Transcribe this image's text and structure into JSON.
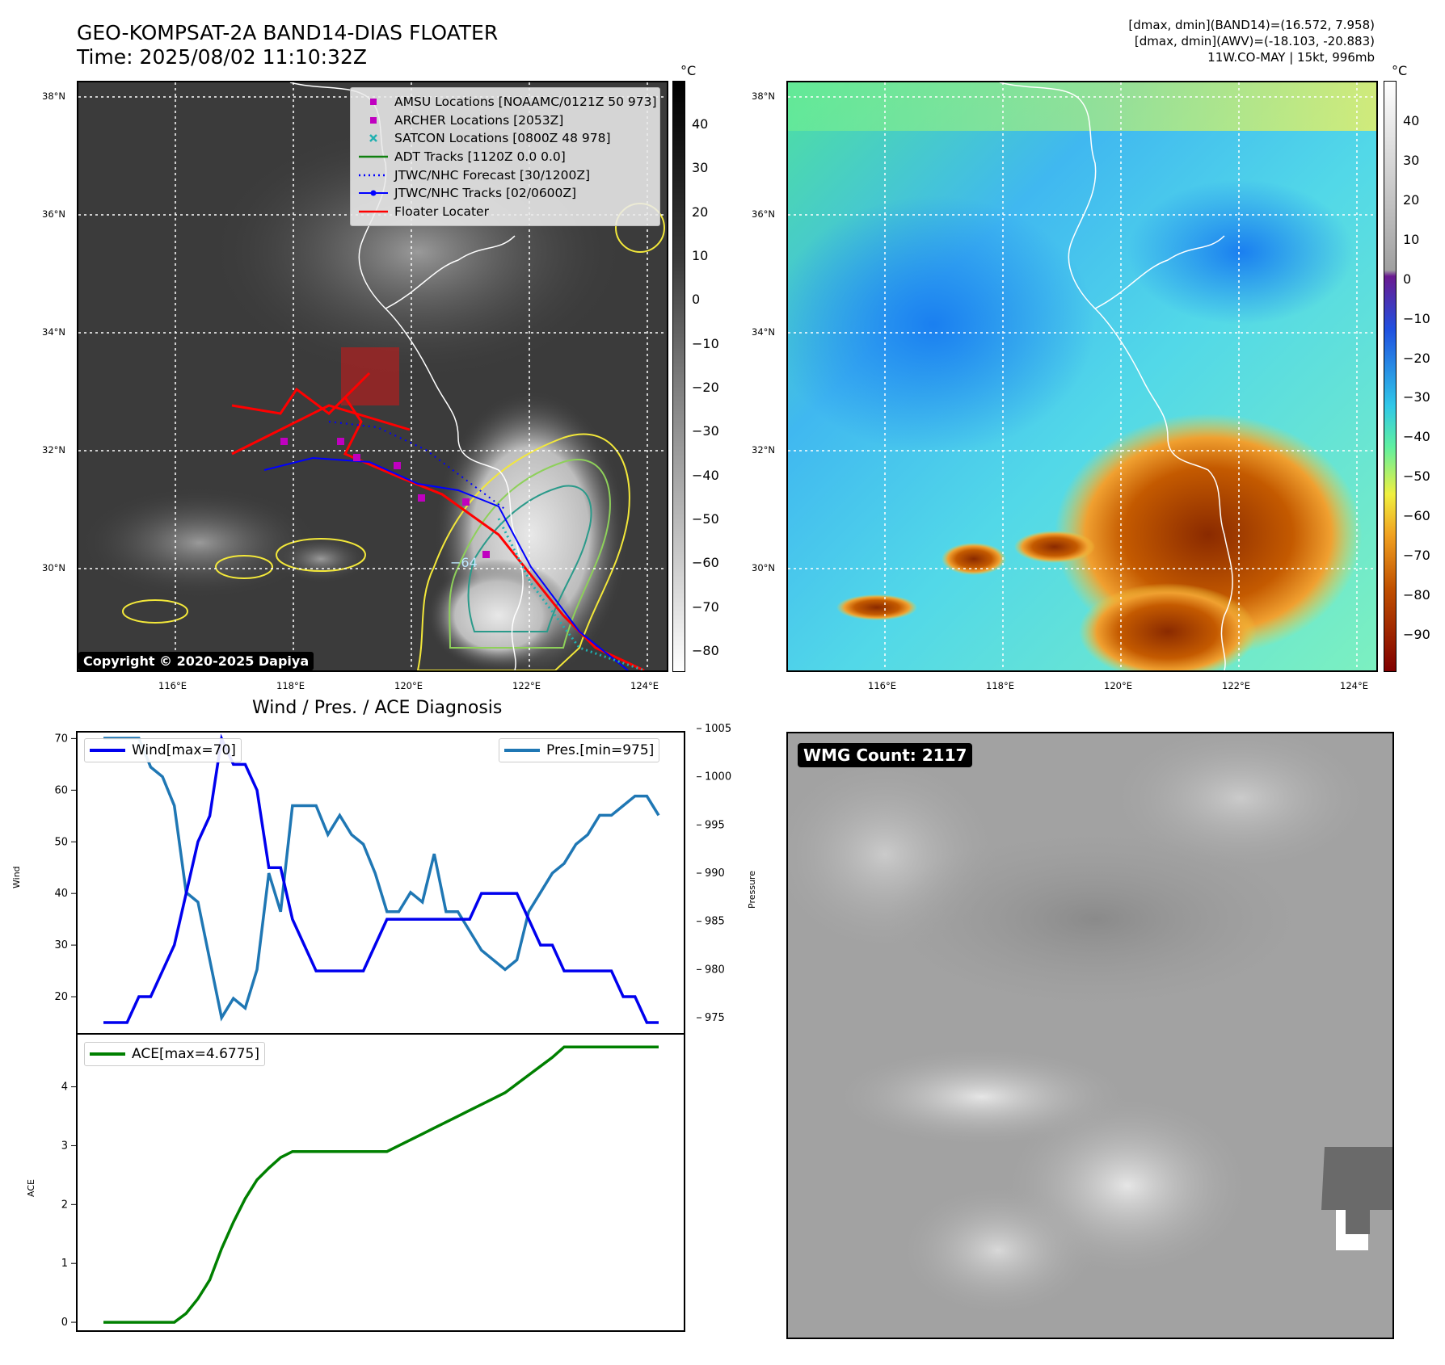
{
  "header": {
    "title": "GEO-KOMPSAT-2A BAND14-DIAS FLOATER",
    "time": "Time: 2025/08/02 11:10:32Z",
    "info_line1": "[dmax, dmin](BAND14)=(16.572, 7.958)",
    "info_line2": "[dmax, dmin](AWV)=(-18.103, -20.883)",
    "info_line3": "11W.CO-MAY | 15kt, 996mb"
  },
  "ir_map": {
    "lat_labels": [
      "38°N",
      "36°N",
      "34°N",
      "32°N",
      "30°N"
    ],
    "lon_labels": [
      "116°E",
      "118°E",
      "120°E",
      "122°E",
      "124°E"
    ],
    "colorbar_unit": "°C",
    "colorbar_ticks": [
      "40",
      "30",
      "20",
      "10",
      "0",
      "−10",
      "−20",
      "−30",
      "−40",
      "−50",
      "−60",
      "−70",
      "−80"
    ],
    "contour_label": "−64",
    "copyright": "Copyright © 2020-2025 Dapiya",
    "legend": [
      {
        "label": "AMSU Locations [NOAAMC/0121Z 50 973]",
        "symbol": "square",
        "color": "#c000c0"
      },
      {
        "label": "ARCHER Locations [2053Z]",
        "symbol": "square",
        "color": "#c000c0"
      },
      {
        "label": "SATCON Locations [0800Z 48 978]",
        "symbol": "x",
        "color": "#20b0b0"
      },
      {
        "label": "ADT Tracks [1120Z 0.0 0.0]",
        "symbol": "line",
        "color": "#108010"
      },
      {
        "label": "JTWC/NHC Forecast [30/1200Z]",
        "symbol": "dotted",
        "color": "#0000ff"
      },
      {
        "label": "JTWC/NHC Tracks [02/0600Z]",
        "symbol": "line-dot",
        "color": "#0000ff"
      },
      {
        "label": "Floater Locater",
        "symbol": "line",
        "color": "#ff0000"
      }
    ]
  },
  "wv_map": {
    "lat_labels": [
      "38°N",
      "36°N",
      "34°N",
      "32°N",
      "30°N"
    ],
    "lon_labels": [
      "116°E",
      "118°E",
      "120°E",
      "122°E",
      "124°E"
    ],
    "colorbar_unit": "°C",
    "colorbar_ticks": [
      "40",
      "30",
      "20",
      "10",
      "0",
      "−10",
      "−20",
      "−30",
      "−40",
      "−50",
      "−60",
      "−70",
      "−80",
      "−90"
    ]
  },
  "diagnosis": {
    "title": "Wind / Pres. / ACE Diagnosis",
    "wind_label": "Wind",
    "pressure_label": "Pressure",
    "ace_label": "ACE",
    "wind_legend": "Wind[max=70]",
    "pres_legend": "Pres.[min=975]",
    "ace_legend": "ACE[max=4.6775]",
    "wind_ticks": [
      "70",
      "60",
      "50",
      "40",
      "30",
      "20"
    ],
    "pres_ticks": [
      "1005",
      "1000",
      "995",
      "990",
      "985",
      "980",
      "975"
    ],
    "ace_ticks": [
      "4",
      "3",
      "2",
      "1",
      "0"
    ],
    "colors": {
      "wind": "#0000ee",
      "pressure": "#1f77b4",
      "ace": "#008000"
    }
  },
  "wmg": {
    "label": "WMG Count: 2117"
  },
  "chart_data": [
    {
      "type": "line",
      "title": "Wind / Pres. / ACE Diagnosis",
      "ylabel": "Wind",
      "y2label": "Pressure",
      "ylim": [
        15,
        71
      ],
      "y2lim": [
        974.5,
        1004.5
      ],
      "series": [
        {
          "name": "Wind[max=70]",
          "axis": "left",
          "values": [
            15,
            15,
            15,
            20,
            20,
            25,
            30,
            40,
            50,
            55,
            70,
            65,
            65,
            60,
            45,
            45,
            35,
            30,
            25,
            25,
            25,
            25,
            25,
            30,
            35,
            35,
            35,
            35,
            35,
            35,
            35,
            35,
            40,
            40,
            40,
            40,
            35,
            30,
            30,
            25,
            25,
            25,
            25,
            25,
            20,
            20,
            15,
            15
          ]
        },
        {
          "name": "Pres.[min=975]",
          "axis": "right",
          "values": [
            1004,
            1004,
            1004,
            1004,
            1001,
            1000,
            997,
            988,
            987,
            981,
            975,
            977,
            976,
            980,
            990,
            986,
            997,
            997,
            997,
            994,
            996,
            994,
            993,
            990,
            986,
            986,
            988,
            987,
            992,
            986,
            986,
            984,
            982,
            981,
            980,
            981,
            986,
            988,
            990,
            991,
            993,
            994,
            996,
            996,
            997,
            998,
            998,
            996
          ]
        }
      ]
    },
    {
      "type": "line",
      "ylabel": "ACE",
      "ylim": [
        -0.15,
        4.9
      ],
      "series": [
        {
          "name": "ACE[max=4.6775]",
          "values": [
            0,
            0,
            0,
            0,
            0,
            0,
            0,
            0.15,
            0.4,
            0.72,
            1.25,
            1.7,
            2.1,
            2.42,
            2.62,
            2.8,
            2.9,
            2.9,
            2.9,
            2.9,
            2.9,
            2.9,
            2.9,
            2.9,
            2.9,
            3.0,
            3.1,
            3.2,
            3.3,
            3.4,
            3.5,
            3.6,
            3.7,
            3.8,
            3.9,
            4.05,
            4.2,
            4.35,
            4.5,
            4.6775,
            4.6775,
            4.6775,
            4.6775,
            4.6775,
            4.6775,
            4.6775,
            4.6775,
            4.6775
          ]
        }
      ]
    }
  ]
}
